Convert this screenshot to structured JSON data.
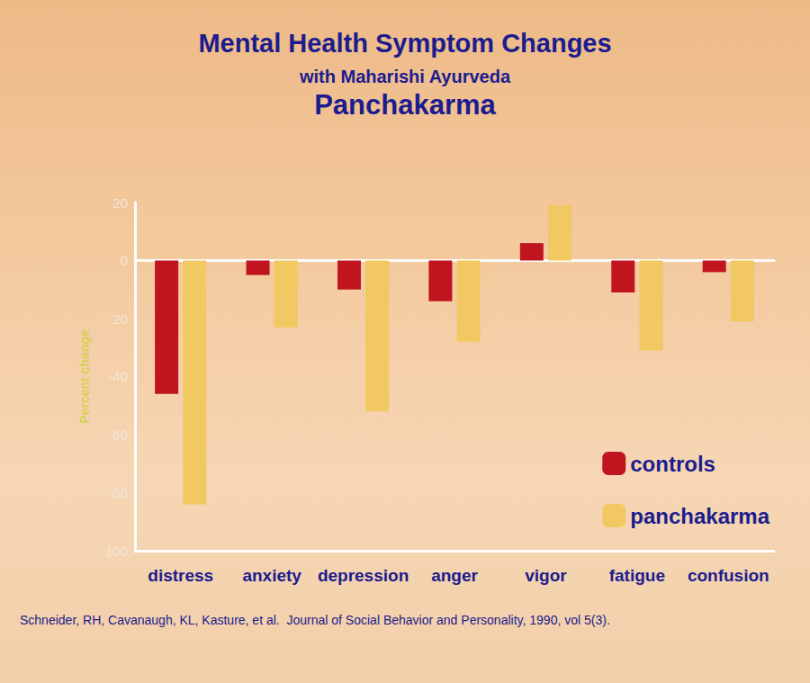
{
  "chart_data": {
    "type": "bar",
    "title": "Mental Health Symptom Changes",
    "subtitle": [
      "with Maharishi Ayurveda",
      "Panchakarma"
    ],
    "ylabel": "Percent change",
    "categories": [
      "distress",
      "anxiety",
      "depression",
      "anger",
      "vigor",
      "fatigue",
      "confusion"
    ],
    "series": [
      {
        "name": "controls",
        "color": "#c0141e",
        "values": [
          -46,
          -5,
          -10,
          -14,
          6,
          -11,
          -4
        ]
      },
      {
        "name": "panchakarma",
        "color": "#f2c862",
        "values": [
          -84,
          -23,
          -52,
          -28,
          19,
          -31,
          -21
        ]
      }
    ],
    "ylim": [
      -100,
      20
    ],
    "yticks": [
      -100,
      -80,
      -60,
      -40,
      -20,
      0,
      20
    ],
    "grid": false,
    "legend": "lower right",
    "source": "Schneider, RH, Cavanaugh, KL, Kasture, et al.  Journal of Social Behavior and Personality, 1990, vol 5(3)."
  }
}
